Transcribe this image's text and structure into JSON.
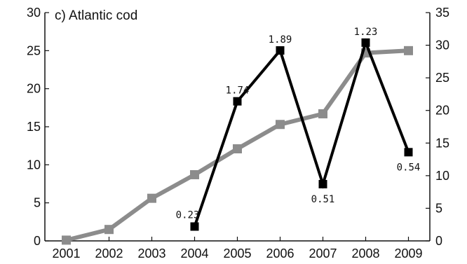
{
  "chart_data": {
    "type": "line",
    "title": "c) Atlantic cod",
    "categories": [
      "2001",
      "2002",
      "2003",
      "2004",
      "2005",
      "2006",
      "2007",
      "2008",
      "2009"
    ],
    "y_left": {
      "lim": [
        0,
        30
      ],
      "ticks": [
        "0",
        "5",
        "10",
        "15",
        "20",
        "25",
        "30"
      ]
    },
    "y_right": {
      "lim": [
        0,
        35
      ],
      "ticks": [
        "0",
        "5",
        "10",
        "15",
        "20",
        "25",
        "30",
        "35"
      ]
    },
    "series": [
      {
        "color": "#8c8c8c",
        "axis": "left",
        "marker": "square",
        "values": [
          0.1,
          1.5,
          5.6,
          8.7,
          12.1,
          15.3,
          16.7,
          24.7,
          25.0
        ]
      },
      {
        "color": "#000000",
        "axis": "right",
        "marker": "square",
        "values": [
          null,
          null,
          null,
          2.2,
          21.4,
          29.2,
          8.7,
          30.4,
          13.6
        ],
        "labels": [
          null,
          null,
          null,
          "0.23",
          "1.74",
          "1.89",
          "0.51",
          "1.23",
          "0.54"
        ],
        "label_pos": [
          null,
          null,
          null,
          "above-left",
          "above",
          "above",
          "below",
          "above",
          "below"
        ]
      }
    ],
    "grid": false
  }
}
